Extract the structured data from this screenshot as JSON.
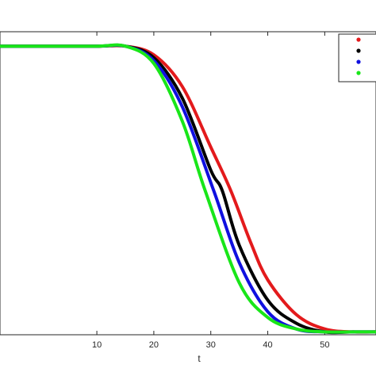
{
  "chart_data": {
    "type": "line",
    "title": "",
    "xlabel": "t",
    "ylabel": "",
    "xlim": [
      -7,
      59
    ],
    "ylim": [
      0,
      1.05
    ],
    "x_ticks": [
      10,
      20,
      30,
      40,
      50
    ],
    "grid": false,
    "legend_placement": "top-right",
    "series": [
      {
        "color": "#e31a1c",
        "x": [
          -7,
          0,
          10,
          15,
          20,
          25,
          30,
          33.5,
          37,
          40,
          45,
          50,
          55,
          59
        ],
        "values": [
          1.0,
          1.0,
          1.0,
          1.0,
          0.97,
          0.86,
          0.65,
          0.5,
          0.32,
          0.19,
          0.07,
          0.02,
          0.01,
          0.01
        ]
      },
      {
        "color": "#000000",
        "x": [
          -7,
          0,
          10,
          15,
          20,
          25,
          30,
          32,
          35,
          40,
          45,
          50,
          55,
          59
        ],
        "values": [
          1.0,
          1.0,
          1.0,
          1.0,
          0.96,
          0.82,
          0.57,
          0.5,
          0.31,
          0.12,
          0.04,
          0.01,
          0.01,
          0.01
        ]
      },
      {
        "color": "#1010e0",
        "x": [
          -7,
          0,
          10,
          15,
          20,
          25,
          30.5,
          35,
          40,
          45,
          50,
          55,
          59
        ],
        "values": [
          1.0,
          1.0,
          1.0,
          1.0,
          0.95,
          0.79,
          0.5,
          0.25,
          0.08,
          0.02,
          0.01,
          0.01,
          0.01
        ]
      },
      {
        "color": "#19e619",
        "x": [
          -7,
          0,
          10,
          15,
          20,
          25,
          29,
          35,
          40,
          45,
          50,
          55,
          59
        ],
        "values": [
          1.0,
          1.0,
          1.0,
          1.0,
          0.94,
          0.74,
          0.5,
          0.18,
          0.06,
          0.02,
          0.01,
          0.01,
          0.01
        ]
      }
    ]
  }
}
